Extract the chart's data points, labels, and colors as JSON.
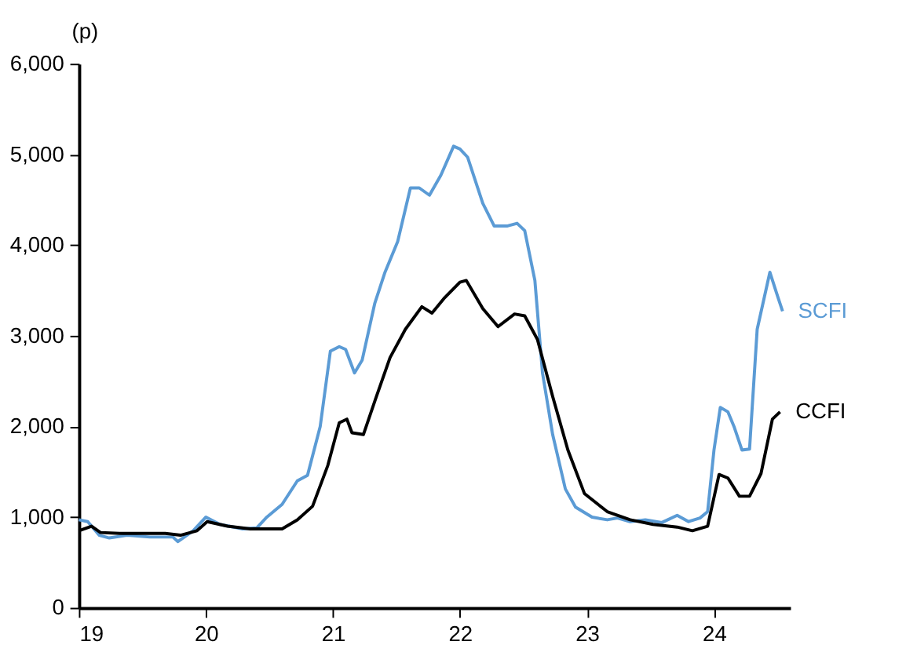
{
  "chart_data": {
    "type": "line",
    "ylabel": "(p)",
    "xlim": [
      19,
      24.6
    ],
    "xticks": [
      19,
      20,
      21,
      22,
      23,
      24
    ],
    "ylim": [
      0,
      6000
    ],
    "yticks": [
      {
        "value": 0,
        "label": "0"
      },
      {
        "value": 1000,
        "label": "1,000"
      },
      {
        "value": 2000,
        "label": "2,000"
      },
      {
        "value": 3000,
        "label": "3,000"
      },
      {
        "value": 4000,
        "label": "4,000"
      },
      {
        "value": 5000,
        "label": "5,000"
      },
      {
        "value": 6000,
        "label": "6,000"
      }
    ],
    "grid": false,
    "legend": false,
    "line_style": "solid",
    "marker": "none",
    "series": [
      {
        "name": "SCFI",
        "color": "#5b9bd5",
        "x": [
          19.0,
          19.07,
          19.16,
          19.24,
          19.38,
          19.56,
          19.74,
          19.78,
          19.9,
          20.0,
          20.11,
          20.29,
          20.4,
          20.48,
          20.6,
          20.72,
          20.8,
          20.9,
          20.98,
          21.05,
          21.1,
          21.17,
          21.23,
          21.33,
          21.41,
          21.51,
          21.61,
          21.68,
          21.76,
          21.85,
          21.95,
          22.0,
          22.06,
          22.18,
          22.27,
          22.37,
          22.45,
          22.51,
          22.59,
          22.65,
          22.73,
          22.83,
          22.91,
          23.04,
          23.16,
          23.24,
          23.34,
          23.46,
          23.59,
          23.71,
          23.8,
          23.89,
          23.95,
          24.0,
          24.05,
          24.11,
          24.16,
          24.22,
          24.28,
          24.34,
          24.44,
          24.5,
          24.54
        ],
        "values": [
          970,
          950,
          800,
          770,
          800,
          780,
          780,
          730,
          850,
          1000,
          920,
          870,
          880,
          1000,
          1140,
          1400,
          1460,
          2000,
          2830,
          2880,
          2850,
          2590,
          2730,
          3360,
          3700,
          4040,
          4630,
          4630,
          4550,
          4770,
          5090,
          5060,
          4970,
          4460,
          4210,
          4210,
          4240,
          4160,
          3610,
          2590,
          1910,
          1310,
          1110,
          1000,
          970,
          990,
          950,
          970,
          940,
          1020,
          950,
          990,
          1060,
          1740,
          2210,
          2160,
          1990,
          1740,
          1750,
          3070,
          3700,
          3440,
          3270
        ]
      },
      {
        "name": "CCFI",
        "color": "#000000",
        "x": [
          19.0,
          19.1,
          19.17,
          19.32,
          19.5,
          19.68,
          19.8,
          19.93,
          20.01,
          20.17,
          20.35,
          20.54,
          20.6,
          20.72,
          20.84,
          20.96,
          21.05,
          21.11,
          21.15,
          21.24,
          21.33,
          21.45,
          21.57,
          21.7,
          21.78,
          21.88,
          22.0,
          22.05,
          22.18,
          22.3,
          22.43,
          22.51,
          22.61,
          22.73,
          22.85,
          22.98,
          23.16,
          23.34,
          23.52,
          23.71,
          23.83,
          23.95,
          24.04,
          24.11,
          24.2,
          24.28,
          24.37,
          24.46,
          24.52
        ],
        "values": [
          850,
          900,
          830,
          820,
          820,
          820,
          800,
          850,
          950,
          900,
          870,
          870,
          870,
          970,
          1120,
          1570,
          2040,
          2080,
          1930,
          1910,
          2280,
          2760,
          3070,
          3320,
          3250,
          3420,
          3590,
          3610,
          3300,
          3100,
          3240,
          3220,
          2960,
          2330,
          1740,
          1260,
          1060,
          970,
          920,
          890,
          850,
          900,
          1470,
          1430,
          1230,
          1230,
          1480,
          2080,
          2160
        ]
      }
    ]
  }
}
